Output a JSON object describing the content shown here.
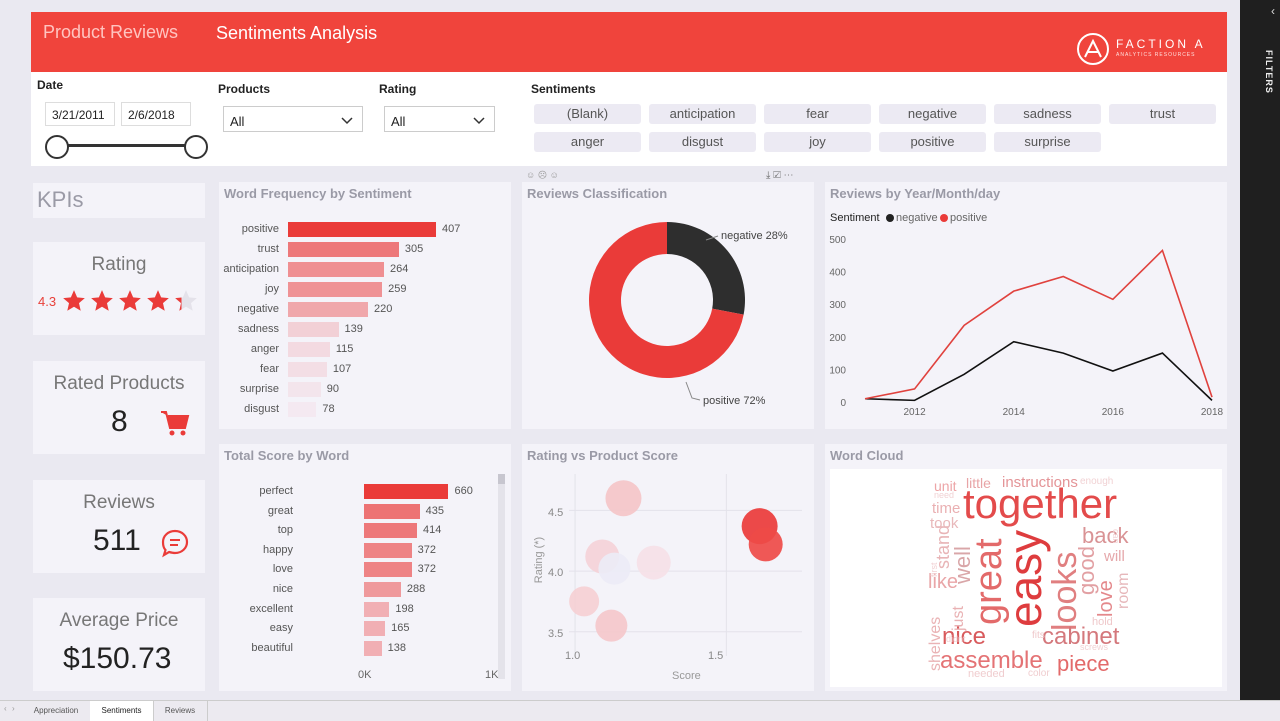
{
  "header": {
    "tab_reviews": "Product Reviews",
    "tab_sentiments": "Sentiments Analysis",
    "logo_main": "FACTION A",
    "logo_sub": "ANALYTICS RESOURCES"
  },
  "filters": {
    "date_label": "Date",
    "date_start": "3/21/2011",
    "date_end": "2/6/2018",
    "products_label": "Products",
    "products_value": "All",
    "rating_label": "Rating",
    "rating_value": "All",
    "sentiments_label": "Sentiments",
    "chips": [
      "(Blank)",
      "anticipation",
      "fear",
      "negative",
      "sadness",
      "trust",
      "anger",
      "disgust",
      "joy",
      "positive",
      "surprise"
    ]
  },
  "kpis": {
    "title": "KPIs",
    "rating_title": "Rating",
    "rating_value": "4.3",
    "rating_stars": 4.3,
    "rated_products_title": "Rated Products",
    "rated_products_value": "8",
    "reviews_title": "Reviews",
    "reviews_value": "511",
    "avg_price_title": "Average Price",
    "avg_price_value": "$150.73"
  },
  "word_freq": {
    "title": "Word Frequency by Sentiment",
    "chart_data": {
      "type": "bar",
      "categories": [
        "positive",
        "trust",
        "anticipation",
        "joy",
        "negative",
        "sadness",
        "anger",
        "fear",
        "surprise",
        "disgust"
      ],
      "values": [
        407,
        305,
        264,
        259,
        220,
        139,
        115,
        107,
        90,
        78
      ],
      "title": "Word Frequency by Sentiment"
    }
  },
  "classification": {
    "title": "Reviews Classification",
    "label_negative": "negative 28%",
    "label_positive": "positive 72%",
    "chart_data": {
      "type": "pie",
      "categories": [
        "negative",
        "positive"
      ],
      "values": [
        28,
        72
      ],
      "title": "Reviews Classification"
    }
  },
  "by_year": {
    "title": "Reviews by Year/Month/day",
    "legend_title": "Sentiment",
    "legend_negative": "negative",
    "legend_positive": "positive",
    "chart_data": {
      "type": "line",
      "title": "Reviews by Year/Month/day",
      "x": [
        2011,
        2012,
        2013,
        2014,
        2015,
        2016,
        2017,
        2018
      ],
      "series": [
        {
          "name": "negative",
          "values": [
            10,
            5,
            85,
            185,
            150,
            95,
            150,
            5
          ]
        },
        {
          "name": "positive",
          "values": [
            10,
            40,
            235,
            340,
            385,
            315,
            465,
            15
          ]
        }
      ],
      "ylim": [
        0,
        500
      ],
      "yticks": [
        "0",
        "100",
        "200",
        "300",
        "400",
        "500"
      ],
      "xticks": [
        "2012",
        "2014",
        "2016",
        "2018"
      ]
    }
  },
  "total_score": {
    "title": "Total Score by Word",
    "axis_min": "0K",
    "axis_max": "1K",
    "chart_data": {
      "type": "bar",
      "categories": [
        "perfect",
        "great",
        "top",
        "happy",
        "love",
        "nice",
        "excellent",
        "easy",
        "beautiful"
      ],
      "values": [
        660,
        435,
        414,
        372,
        372,
        288,
        198,
        165,
        138
      ],
      "title": "Total Score by Word",
      "xlim": [
        0,
        1000
      ]
    }
  },
  "scatter": {
    "title": "Rating vs Product Score",
    "xlabel": "Score",
    "ylabel": "Rating (*)",
    "xticks": [
      "1.0",
      "1.5"
    ],
    "yticks": [
      "4.5",
      "4.0",
      "3.5"
    ],
    "chart_data": {
      "type": "scatter",
      "title": "Rating vs Product Score",
      "xlabel": "Score",
      "ylabel": "Rating (*)",
      "xlim": [
        0.98,
        1.75
      ],
      "ylim": [
        3.3,
        4.8
      ],
      "points": [
        {
          "x": 1.16,
          "y": 4.6,
          "r": 18,
          "color": "#f4c5c8"
        },
        {
          "x": 1.09,
          "y": 4.12,
          "r": 17,
          "color": "#f4d3d8"
        },
        {
          "x": 1.13,
          "y": 4.02,
          "r": 16,
          "color": "#ecebf6"
        },
        {
          "x": 1.26,
          "y": 4.07,
          "r": 17,
          "color": "#f5e1e7"
        },
        {
          "x": 1.03,
          "y": 3.75,
          "r": 15,
          "color": "#f5d0d4"
        },
        {
          "x": 1.12,
          "y": 3.55,
          "r": 16,
          "color": "#f4c8cb"
        },
        {
          "x": 1.61,
          "y": 4.37,
          "r": 18,
          "color": "#ea3b39"
        },
        {
          "x": 1.63,
          "y": 4.22,
          "r": 17,
          "color": "#ee4b48"
        }
      ]
    }
  },
  "word_cloud": {
    "title": "Word Cloud",
    "words": [
      "together",
      "easy",
      "great",
      "looks",
      "nice",
      "cabinet",
      "assemble",
      "piece",
      "back",
      "good",
      "love",
      "room",
      "well",
      "like",
      "stand",
      "just",
      "shelves",
      "instructions",
      "little",
      "unit",
      "time",
      "took",
      "will",
      "hold",
      "fits",
      "needed",
      "color",
      "enough",
      "need",
      "screws",
      "didnt",
      "can",
      "first"
    ]
  },
  "bottom_tabs": [
    "Appreciation",
    "Sentiments",
    "Reviews"
  ],
  "right_strip": {
    "label": "FILTERS"
  },
  "colors": {
    "accent": "#f0443c",
    "dark": "#2e2e2e"
  }
}
